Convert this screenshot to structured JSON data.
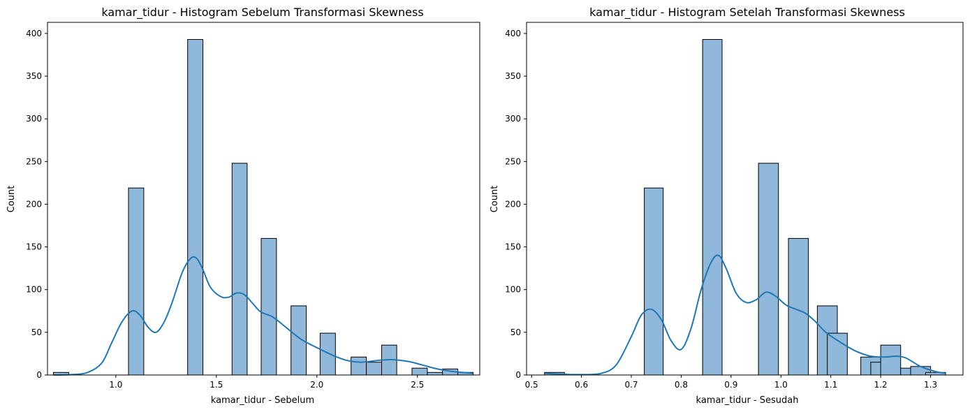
{
  "chart_data": [
    {
      "type": "bar",
      "title": "kamar_tidur - Histogram Sebelum Transformasi Skewness",
      "xlabel": "kamar_tidur - Sebelum",
      "ylabel": "Count",
      "xlim": [
        0.66,
        2.81
      ],
      "ylim": [
        0,
        413
      ],
      "xticks": [
        1.0,
        1.5,
        2.0,
        2.5
      ],
      "xtick_labels": [
        "1.0",
        "1.5",
        "2.0",
        "2.5"
      ],
      "yticks": [
        0,
        50,
        100,
        150,
        200,
        250,
        300,
        350,
        400
      ],
      "bars": [
        {
          "x0": 0.69,
          "x1": 0.766,
          "count": 3
        },
        {
          "x0": 1.063,
          "x1": 1.139,
          "count": 219
        },
        {
          "x0": 1.357,
          "x1": 1.433,
          "count": 393
        },
        {
          "x0": 1.578,
          "x1": 1.653,
          "count": 248
        },
        {
          "x0": 1.723,
          "x1": 1.799,
          "count": 160
        },
        {
          "x0": 1.871,
          "x1": 1.947,
          "count": 81
        },
        {
          "x0": 2.016,
          "x1": 2.092,
          "count": 49
        },
        {
          "x0": 2.17,
          "x1": 2.246,
          "count": 21
        },
        {
          "x0": 2.246,
          "x1": 2.322,
          "count": 15
        },
        {
          "x0": 2.322,
          "x1": 2.397,
          "count": 35
        },
        {
          "x0": 2.473,
          "x1": 2.549,
          "count": 8
        },
        {
          "x0": 2.549,
          "x1": 2.625,
          "count": 3
        },
        {
          "x0": 2.625,
          "x1": 2.701,
          "count": 7
        },
        {
          "x0": 2.701,
          "x1": 2.777,
          "count": 3
        }
      ],
      "kde": {
        "x": [
          0.69,
          0.78,
          0.86,
          0.93,
          0.98,
          1.03,
          1.08,
          1.12,
          1.16,
          1.2,
          1.24,
          1.28,
          1.33,
          1.37,
          1.4,
          1.43,
          1.47,
          1.52,
          1.56,
          1.6,
          1.64,
          1.68,
          1.72,
          1.78,
          1.85,
          1.92,
          2.0,
          2.08,
          2.15,
          2.22,
          2.3,
          2.37,
          2.45,
          2.52,
          2.6,
          2.68,
          2.777
        ],
        "y": [
          0,
          0.5,
          3,
          14,
          38,
          62,
          75,
          70,
          56,
          50,
          62,
          85,
          120,
          136,
          137,
          125,
          103,
          92,
          91,
          96,
          94,
          84,
          74,
          68,
          55,
          42,
          32,
          23,
          17,
          15,
          17,
          18,
          16,
          12,
          7,
          4,
          2
        ]
      },
      "color": "#1f77b4"
    },
    {
      "type": "bar",
      "title": "kamar_tidur - Histogram Setelah Transformasi Skewness",
      "xlabel": "kamar_tidur - Sesudah",
      "ylabel": "Count",
      "xlim": [
        0.49,
        1.365
      ],
      "ylim": [
        0,
        413
      ],
      "xticks": [
        0.5,
        0.6,
        0.7,
        0.8,
        0.9,
        1.0,
        1.1,
        1.2,
        1.3
      ],
      "xtick_labels": [
        "0.5",
        "0.6",
        "0.7",
        "0.8",
        "0.9",
        "1.0",
        "1.1",
        "1.2",
        "1.3"
      ],
      "yticks": [
        0,
        50,
        100,
        150,
        200,
        250,
        300,
        350,
        400
      ],
      "bars": [
        {
          "x0": 0.526,
          "x1": 0.566,
          "count": 3
        },
        {
          "x0": 0.726,
          "x1": 0.764,
          "count": 219
        },
        {
          "x0": 0.843,
          "x1": 0.882,
          "count": 393
        },
        {
          "x0": 0.955,
          "x1": 0.995,
          "count": 248
        },
        {
          "x0": 1.015,
          "x1": 1.055,
          "count": 160
        },
        {
          "x0": 1.073,
          "x1": 1.113,
          "count": 81
        },
        {
          "x0": 1.093,
          "x1": 1.133,
          "count": 49
        },
        {
          "x0": 1.16,
          "x1": 1.2,
          "count": 21
        },
        {
          "x0": 1.18,
          "x1": 1.22,
          "count": 15
        },
        {
          "x0": 1.2,
          "x1": 1.24,
          "count": 35
        },
        {
          "x0": 1.24,
          "x1": 1.28,
          "count": 8
        },
        {
          "x0": 1.26,
          "x1": 1.3,
          "count": 10
        },
        {
          "x0": 1.29,
          "x1": 1.33,
          "count": 3
        }
      ],
      "kde": {
        "x": [
          0.526,
          0.56,
          0.6,
          0.64,
          0.67,
          0.7,
          0.72,
          0.74,
          0.76,
          0.78,
          0.8,
          0.82,
          0.84,
          0.86,
          0.875,
          0.89,
          0.91,
          0.93,
          0.95,
          0.97,
          0.99,
          1.01,
          1.03,
          1.05,
          1.07,
          1.09,
          1.12,
          1.15,
          1.18,
          1.21,
          1.23,
          1.25,
          1.28,
          1.31,
          1.33
        ],
        "y": [
          2,
          1,
          0.5,
          2,
          12,
          45,
          70,
          77,
          65,
          40,
          30,
          55,
          100,
          132,
          140,
          125,
          96,
          85,
          88,
          97,
          92,
          82,
          77,
          72,
          62,
          50,
          38,
          28,
          22,
          21,
          22,
          20,
          10,
          4,
          2
        ]
      },
      "color": "#1f77b4"
    }
  ]
}
